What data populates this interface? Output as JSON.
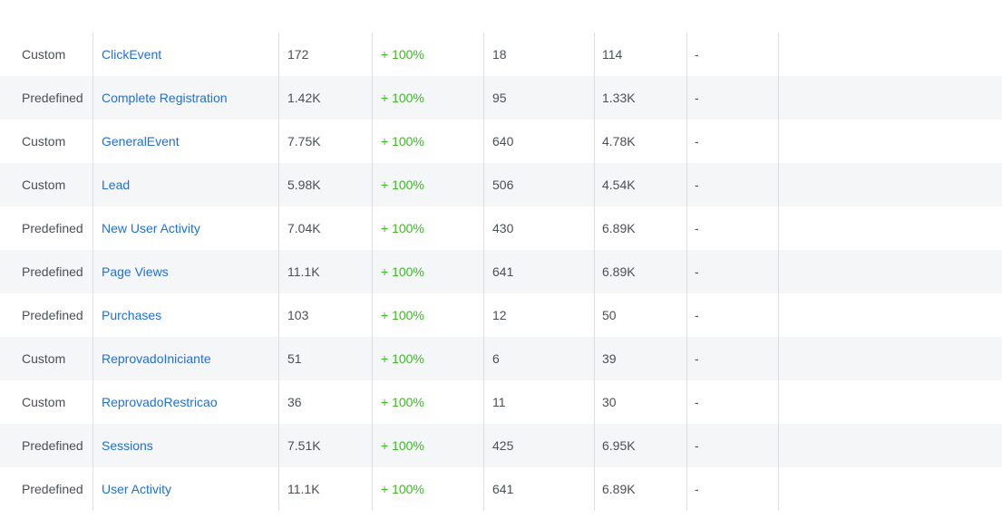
{
  "colors": {
    "link": "#216fdb",
    "positive": "#42b72a",
    "text": "#4b4f56",
    "stripe": "#f5f6f7",
    "divider": "#dddfe2"
  },
  "rows": [
    {
      "type": "Custom",
      "name": "ClickEvent",
      "a": "172",
      "b": "+ 100%",
      "c": "18",
      "d": "114",
      "e": "-"
    },
    {
      "type": "Predefined",
      "name": "Complete Registration",
      "a": "1.42K",
      "b": "+ 100%",
      "c": "95",
      "d": "1.33K",
      "e": "-"
    },
    {
      "type": "Custom",
      "name": "GeneralEvent",
      "a": "7.75K",
      "b": "+ 100%",
      "c": "640",
      "d": "4.78K",
      "e": "-"
    },
    {
      "type": "Custom",
      "name": "Lead",
      "a": "5.98K",
      "b": "+ 100%",
      "c": "506",
      "d": "4.54K",
      "e": "-"
    },
    {
      "type": "Predefined",
      "name": "New User Activity",
      "a": "7.04K",
      "b": "+ 100%",
      "c": "430",
      "d": "6.89K",
      "e": "-"
    },
    {
      "type": "Predefined",
      "name": "Page Views",
      "a": "11.1K",
      "b": "+ 100%",
      "c": "641",
      "d": "6.89K",
      "e": "-"
    },
    {
      "type": "Predefined",
      "name": "Purchases",
      "a": "103",
      "b": "+ 100%",
      "c": "12",
      "d": "50",
      "e": "-"
    },
    {
      "type": "Custom",
      "name": "ReprovadoIniciante",
      "a": "51",
      "b": "+ 100%",
      "c": "6",
      "d": "39",
      "e": "-"
    },
    {
      "type": "Custom",
      "name": "ReprovadoRestricao",
      "a": "36",
      "b": "+ 100%",
      "c": "11",
      "d": "30",
      "e": "-"
    },
    {
      "type": "Predefined",
      "name": "Sessions",
      "a": "7.51K",
      "b": "+ 100%",
      "c": "425",
      "d": "6.95K",
      "e": "-"
    },
    {
      "type": "Predefined",
      "name": "User Activity",
      "a": "11.1K",
      "b": "+ 100%",
      "c": "641",
      "d": "6.89K",
      "e": "-"
    }
  ]
}
